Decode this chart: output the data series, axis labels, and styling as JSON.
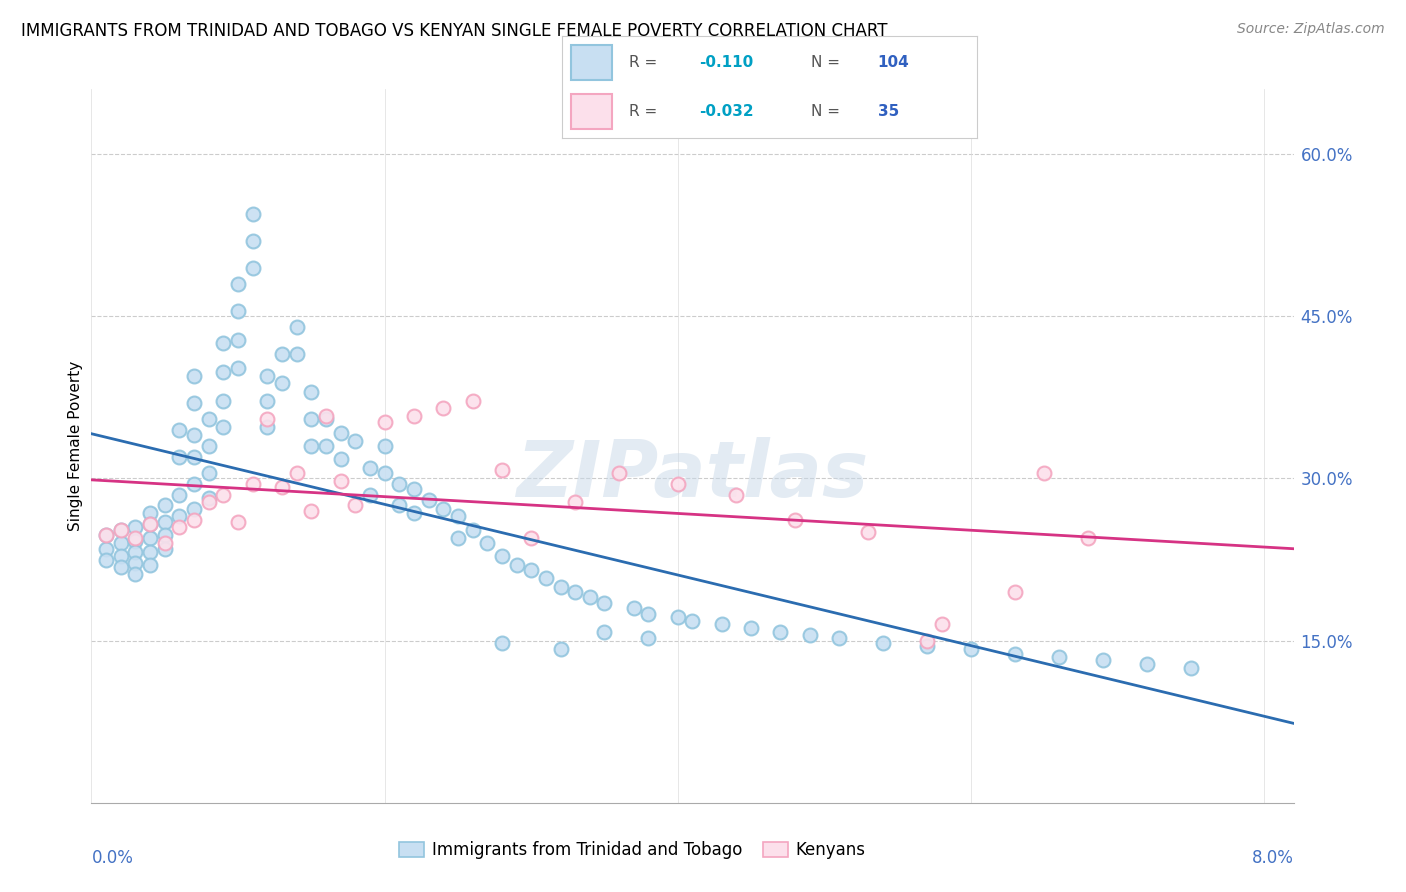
{
  "title": "IMMIGRANTS FROM TRINIDAD AND TOBAGO VS KENYAN SINGLE FEMALE POVERTY CORRELATION CHART",
  "source": "Source: ZipAtlas.com",
  "ylabel": "Single Female Poverty",
  "ytick_vals": [
    0.15,
    0.3,
    0.45,
    0.6
  ],
  "xlim": [
    0.0,
    0.082
  ],
  "ylim": [
    0.0,
    0.66
  ],
  "bottom_legend1": "Immigrants from Trinidad and Tobago",
  "bottom_legend2": "Kenyans",
  "blue_color": "#92c5de",
  "pink_color": "#f4a6c0",
  "blue_fill": "#c8dff2",
  "pink_fill": "#fce0eb",
  "blue_line_color": "#2b6cb0",
  "pink_line_color": "#d63384",
  "watermark": "ZIPatlas",
  "blue_R": -0.11,
  "blue_N": 104,
  "pink_R": -0.032,
  "pink_N": 35,
  "blue_x": [
    0.001,
    0.001,
    0.001,
    0.002,
    0.002,
    0.002,
    0.002,
    0.003,
    0.003,
    0.003,
    0.003,
    0.003,
    0.004,
    0.004,
    0.004,
    0.004,
    0.004,
    0.005,
    0.005,
    0.005,
    0.005,
    0.006,
    0.006,
    0.006,
    0.006,
    0.007,
    0.007,
    0.007,
    0.007,
    0.007,
    0.007,
    0.008,
    0.008,
    0.008,
    0.008,
    0.009,
    0.009,
    0.009,
    0.009,
    0.01,
    0.01,
    0.01,
    0.01,
    0.011,
    0.011,
    0.011,
    0.012,
    0.012,
    0.012,
    0.013,
    0.013,
    0.014,
    0.014,
    0.015,
    0.015,
    0.015,
    0.016,
    0.016,
    0.017,
    0.017,
    0.018,
    0.019,
    0.019,
    0.02,
    0.02,
    0.021,
    0.021,
    0.022,
    0.022,
    0.023,
    0.024,
    0.025,
    0.025,
    0.026,
    0.027,
    0.028,
    0.029,
    0.03,
    0.031,
    0.032,
    0.033,
    0.034,
    0.035,
    0.037,
    0.038,
    0.04,
    0.041,
    0.043,
    0.045,
    0.047,
    0.049,
    0.051,
    0.054,
    0.057,
    0.06,
    0.063,
    0.066,
    0.069,
    0.072,
    0.075,
    0.028,
    0.032,
    0.035,
    0.038
  ],
  "blue_y": [
    0.248,
    0.235,
    0.225,
    0.252,
    0.24,
    0.228,
    0.218,
    0.255,
    0.242,
    0.232,
    0.222,
    0.212,
    0.268,
    0.258,
    0.245,
    0.232,
    0.22,
    0.275,
    0.26,
    0.248,
    0.235,
    0.345,
    0.32,
    0.285,
    0.265,
    0.395,
    0.37,
    0.34,
    0.32,
    0.295,
    0.272,
    0.355,
    0.33,
    0.305,
    0.282,
    0.425,
    0.398,
    0.372,
    0.348,
    0.48,
    0.455,
    0.428,
    0.402,
    0.545,
    0.52,
    0.495,
    0.395,
    0.372,
    0.348,
    0.415,
    0.388,
    0.44,
    0.415,
    0.38,
    0.355,
    0.33,
    0.355,
    0.33,
    0.342,
    0.318,
    0.335,
    0.31,
    0.285,
    0.33,
    0.305,
    0.295,
    0.275,
    0.29,
    0.268,
    0.28,
    0.272,
    0.265,
    0.245,
    0.252,
    0.24,
    0.228,
    0.22,
    0.215,
    0.208,
    0.2,
    0.195,
    0.19,
    0.185,
    0.18,
    0.175,
    0.172,
    0.168,
    0.165,
    0.162,
    0.158,
    0.155,
    0.152,
    0.148,
    0.145,
    0.142,
    0.138,
    0.135,
    0.132,
    0.128,
    0.125,
    0.148,
    0.142,
    0.158,
    0.152
  ],
  "pink_x": [
    0.001,
    0.002,
    0.003,
    0.004,
    0.005,
    0.006,
    0.007,
    0.008,
    0.009,
    0.01,
    0.011,
    0.012,
    0.013,
    0.014,
    0.015,
    0.016,
    0.017,
    0.018,
    0.02,
    0.022,
    0.024,
    0.026,
    0.028,
    0.03,
    0.033,
    0.036,
    0.04,
    0.044,
    0.048,
    0.053,
    0.058,
    0.063,
    0.068,
    0.057,
    0.065
  ],
  "pink_y": [
    0.248,
    0.252,
    0.245,
    0.258,
    0.24,
    0.255,
    0.262,
    0.278,
    0.285,
    0.26,
    0.295,
    0.355,
    0.292,
    0.305,
    0.27,
    0.358,
    0.298,
    0.275,
    0.352,
    0.358,
    0.365,
    0.372,
    0.308,
    0.245,
    0.278,
    0.305,
    0.295,
    0.285,
    0.262,
    0.25,
    0.165,
    0.195,
    0.245,
    0.15,
    0.305
  ]
}
